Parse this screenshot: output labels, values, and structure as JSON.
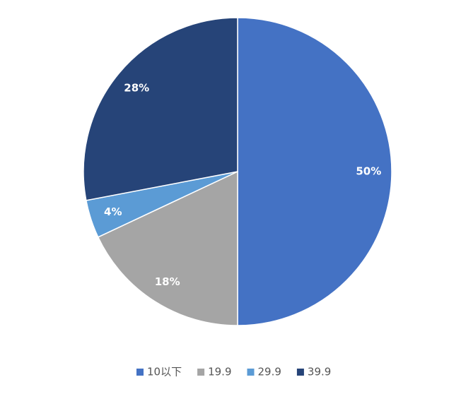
{
  "chart_data": {
    "type": "pie",
    "categories": [
      "10以下",
      "19.9",
      "29.9",
      "39.9"
    ],
    "values": [
      50,
      18,
      4,
      28
    ],
    "value_labels": [
      "50%",
      "18%",
      "4%",
      "28%"
    ],
    "colors": [
      "#4472c4",
      "#a5a5a5",
      "#5b9bd5",
      "#264478"
    ],
    "legend": "bottom"
  }
}
